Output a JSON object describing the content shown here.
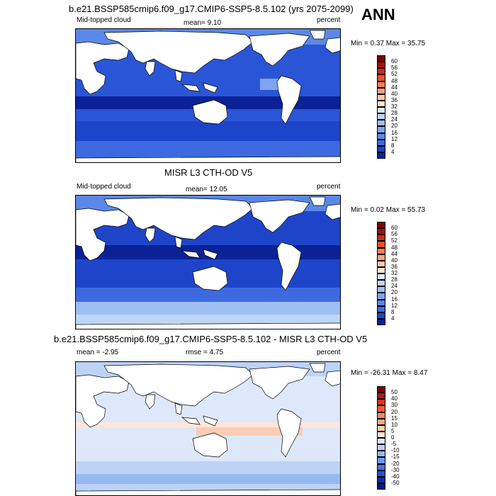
{
  "season": "ANN",
  "panels": [
    {
      "title": "b.e21.BSSP585cmip6.f09_g17.CMIP6-SSP5-8.5.102 (yrs 2075-2099)",
      "left_label": "Mid-topped cloud",
      "center_label": "mean=  9.10",
      "right_label": "percent",
      "minmax": "Min =  0.37 Max = 35.75",
      "colorbar": {
        "labels": [
          "60",
          "56",
          "52",
          "48",
          "44",
          "40",
          "36",
          "32",
          "28",
          "24",
          "20",
          "16",
          "12",
          "8",
          "4"
        ],
        "colors": [
          "#7a0403",
          "#a30f0f",
          "#c92a1c",
          "#e8502e",
          "#f47d52",
          "#f9a27c",
          "#fbc6aa",
          "#fde3d2",
          "#dfeafb",
          "#bfd5f6",
          "#9fbef2",
          "#7ea5ee",
          "#5b88e8",
          "#3d6ae0",
          "#1e45c9",
          "#0a2296"
        ]
      }
    },
    {
      "title": "MISR L3 CTH-OD V5",
      "left_label": "Mid-topped cloud",
      "center_label": "mean=  12.05",
      "right_label": "percent",
      "minmax": "Min =  0.02 Max = 55.73",
      "colorbar": {
        "labels": [
          "60",
          "56",
          "52",
          "48",
          "44",
          "40",
          "36",
          "32",
          "28",
          "24",
          "20",
          "16",
          "12",
          "8",
          "4"
        ],
        "colors": [
          "#7a0403",
          "#a30f0f",
          "#c92a1c",
          "#e8502e",
          "#f47d52",
          "#f9a27c",
          "#fbc6aa",
          "#fde3d2",
          "#dfeafb",
          "#bfd5f6",
          "#9fbef2",
          "#7ea5ee",
          "#5b88e8",
          "#3d6ae0",
          "#1e45c9",
          "#0a2296"
        ]
      }
    },
    {
      "title": "b.e21.BSSP585cmip6.f09_g17.CMIP6-SSP5-8.5.102 - MISR L3 CTH-OD V5",
      "left_label": "mean =  -2.95",
      "center_label": "rmse =  4.75",
      "right_label": "percent",
      "minmax": "Min = -26.31 Max =  8.47",
      "colorbar": {
        "labels": [
          "50",
          "40",
          "30",
          "20",
          "15",
          "10",
          "5",
          "0",
          "-5",
          "-10",
          "-15",
          "-20",
          "-30",
          "-40",
          "-50"
        ],
        "colors": [
          "#7a0403",
          "#b0160f",
          "#d93520",
          "#ef5d3a",
          "#f6875f",
          "#f9ab89",
          "#fbcdb5",
          "#fde6d8",
          "#dde8fa",
          "#bcd3f6",
          "#97b9f1",
          "#6f98ea",
          "#4574e2",
          "#2450cf",
          "#0d2ca6",
          "#081a78"
        ]
      }
    }
  ]
}
